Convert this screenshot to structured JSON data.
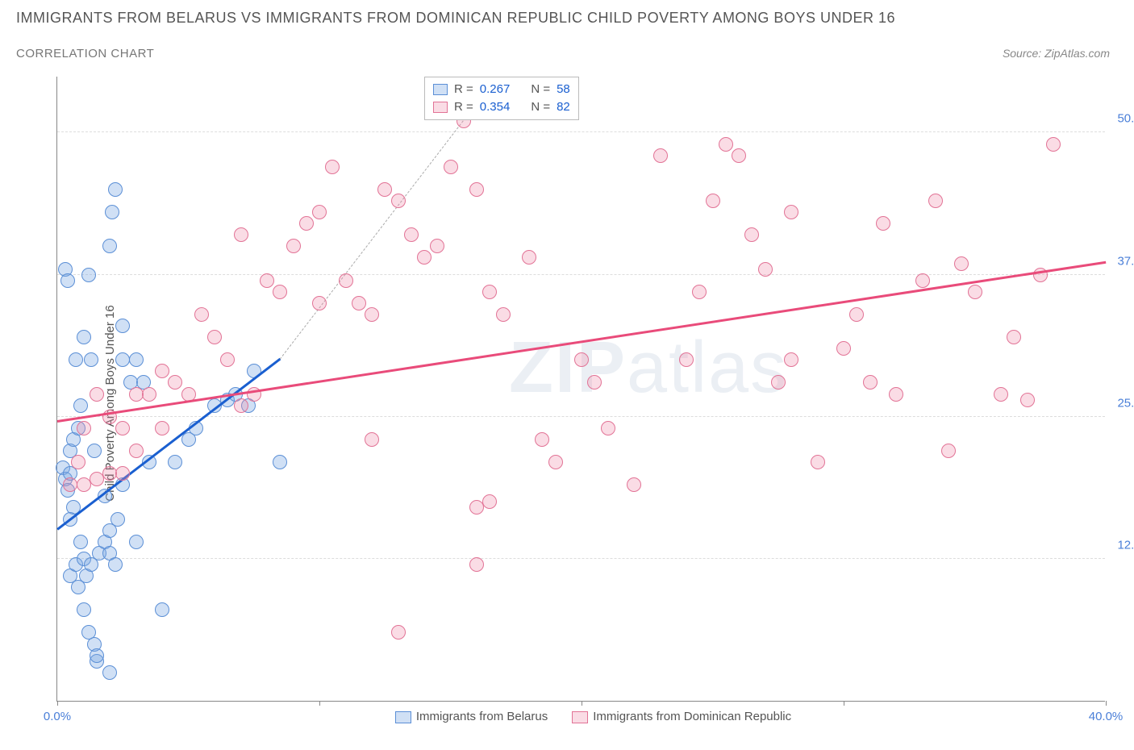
{
  "title": "IMMIGRANTS FROM BELARUS VS IMMIGRANTS FROM DOMINICAN REPUBLIC CHILD POVERTY AMONG BOYS UNDER 16",
  "subtitle": "CORRELATION CHART",
  "source": "Source: ZipAtlas.com",
  "y_axis_label": "Child Poverty Among Boys Under 16",
  "watermark_bold": "ZIP",
  "watermark_light": "atlas",
  "chart": {
    "type": "scatter",
    "xlim": [
      0,
      40
    ],
    "ylim": [
      0,
      55
    ],
    "x_ticks": [
      0,
      10,
      20,
      30,
      40
    ],
    "x_tick_labels": [
      "0.0%",
      "",
      "",
      "",
      "40.0%"
    ],
    "y_ticks": [
      12.5,
      25.0,
      37.5,
      50.0
    ],
    "y_tick_labels": [
      "12.5%",
      "25.0%",
      "37.5%",
      "50.0%"
    ],
    "grid_color": "#dddddd",
    "series": [
      {
        "key": "belarus",
        "label": "Immigrants from Belarus",
        "fill": "rgba(120,165,225,0.35)",
        "stroke": "#5b8fd6",
        "trend_color": "#1a5fd0",
        "trend": {
          "x1": 0,
          "y1": 15,
          "x2": 8.5,
          "y2": 30
        },
        "trend_dash": {
          "x1": 8.5,
          "y1": 30,
          "x2": 15.5,
          "y2": 51
        },
        "points": [
          [
            0.2,
            20.5
          ],
          [
            0.3,
            19.5
          ],
          [
            0.4,
            18.5
          ],
          [
            0.5,
            20
          ],
          [
            0.5,
            22
          ],
          [
            0.6,
            17
          ],
          [
            0.5,
            11
          ],
          [
            0.7,
            12
          ],
          [
            0.8,
            10
          ],
          [
            1.0,
            12.5
          ],
          [
            1.1,
            11
          ],
          [
            1.3,
            12
          ],
          [
            1,
            8
          ],
          [
            1.2,
            6
          ],
          [
            1.4,
            5
          ],
          [
            1.5,
            3.5
          ],
          [
            2,
            2.5
          ],
          [
            1.6,
            13
          ],
          [
            1.8,
            14
          ],
          [
            2,
            13
          ],
          [
            2.2,
            12
          ],
          [
            2,
            15
          ],
          [
            2.3,
            16
          ],
          [
            0.6,
            23
          ],
          [
            0.8,
            24
          ],
          [
            0.7,
            30
          ],
          [
            1.3,
            30
          ],
          [
            1,
            32
          ],
          [
            2.5,
            30
          ],
          [
            3,
            30
          ],
          [
            2.8,
            28
          ],
          [
            3.3,
            28
          ],
          [
            2.5,
            33
          ],
          [
            1.2,
            37.5
          ],
          [
            2,
            40
          ],
          [
            2.2,
            45
          ],
          [
            2.1,
            43
          ],
          [
            4,
            8
          ],
          [
            3.5,
            21
          ],
          [
            4.5,
            21
          ],
          [
            5,
            23
          ],
          [
            5.3,
            24
          ],
          [
            6,
            26
          ],
          [
            6.5,
            26.5
          ],
          [
            6.8,
            27
          ],
          [
            7.3,
            26
          ],
          [
            7.5,
            29
          ],
          [
            8.5,
            21
          ],
          [
            0.3,
            38
          ],
          [
            0.4,
            37
          ],
          [
            1.8,
            18
          ],
          [
            0.9,
            14
          ],
          [
            3,
            14
          ],
          [
            0.5,
            16
          ],
          [
            1.5,
            4
          ],
          [
            2.5,
            19
          ],
          [
            1.4,
            22
          ],
          [
            0.9,
            26
          ]
        ]
      },
      {
        "key": "dominican",
        "label": "Immigrants from Dominican Republic",
        "fill": "rgba(240,140,170,0.30)",
        "stroke": "#e27396",
        "trend_color": "#e94b7a",
        "trend": {
          "x1": 0,
          "y1": 24.5,
          "x2": 40,
          "y2": 38.5
        },
        "points": [
          [
            1,
            19
          ],
          [
            1.5,
            19.5
          ],
          [
            2,
            20
          ],
          [
            1,
            24
          ],
          [
            2,
            25
          ],
          [
            2.5,
            24
          ],
          [
            3,
            27
          ],
          [
            3.5,
            27
          ],
          [
            4,
            29
          ],
          [
            4.5,
            28
          ],
          [
            5,
            27
          ],
          [
            5.5,
            34
          ],
          [
            6,
            32
          ],
          [
            7,
            26
          ],
          [
            7.5,
            27
          ],
          [
            8,
            37
          ],
          [
            8.5,
            36
          ],
          [
            9,
            40
          ],
          [
            9.5,
            42
          ],
          [
            10,
            43
          ],
          [
            10.5,
            47
          ],
          [
            11,
            37
          ],
          [
            11.5,
            35
          ],
          [
            12,
            34
          ],
          [
            12.5,
            45
          ],
          [
            13,
            44
          ],
          [
            13.5,
            41
          ],
          [
            14,
            39
          ],
          [
            14.5,
            40
          ],
          [
            15,
            47
          ],
          [
            15.5,
            51
          ],
          [
            16,
            45
          ],
          [
            16.5,
            36
          ],
          [
            17,
            34
          ],
          [
            18,
            39
          ],
          [
            18.5,
            23
          ],
          [
            19,
            21
          ],
          [
            16,
            17
          ],
          [
            16.5,
            17.5
          ],
          [
            13,
            6
          ],
          [
            16,
            12
          ],
          [
            20,
            30
          ],
          [
            20.5,
            28
          ],
          [
            21,
            24
          ],
          [
            22,
            19
          ],
          [
            23,
            48
          ],
          [
            24,
            30
          ],
          [
            24.5,
            36
          ],
          [
            25,
            44
          ],
          [
            25.5,
            49
          ],
          [
            26,
            48
          ],
          [
            26.5,
            41
          ],
          [
            27,
            38
          ],
          [
            27.5,
            28
          ],
          [
            28,
            43
          ],
          [
            29,
            21
          ],
          [
            30,
            31
          ],
          [
            30.5,
            34
          ],
          [
            31,
            28
          ],
          [
            31.5,
            42
          ],
          [
            32,
            27
          ],
          [
            33,
            37
          ],
          [
            33.5,
            44
          ],
          [
            34,
            22
          ],
          [
            34.5,
            38.5
          ],
          [
            35,
            36
          ],
          [
            36,
            27
          ],
          [
            36.5,
            32
          ],
          [
            37,
            26.5
          ],
          [
            37.5,
            37.5
          ],
          [
            38,
            49
          ],
          [
            2.5,
            20
          ],
          [
            3,
            22
          ],
          [
            4,
            24
          ],
          [
            1.5,
            27
          ],
          [
            0.8,
            21
          ],
          [
            0.5,
            19
          ],
          [
            10,
            35
          ],
          [
            12,
            23
          ],
          [
            6.5,
            30
          ],
          [
            7,
            41
          ],
          [
            28,
            30
          ]
        ]
      }
    ]
  },
  "stats": {
    "rows": [
      {
        "swatch_fill": "rgba(120,165,225,0.35)",
        "swatch_stroke": "#5b8fd6",
        "R": "0.267",
        "N": "58"
      },
      {
        "swatch_fill": "rgba(240,140,170,0.30)",
        "swatch_stroke": "#e27396",
        "R": "0.354",
        "N": "82"
      }
    ],
    "R_label": "R =",
    "N_label": "N ="
  }
}
